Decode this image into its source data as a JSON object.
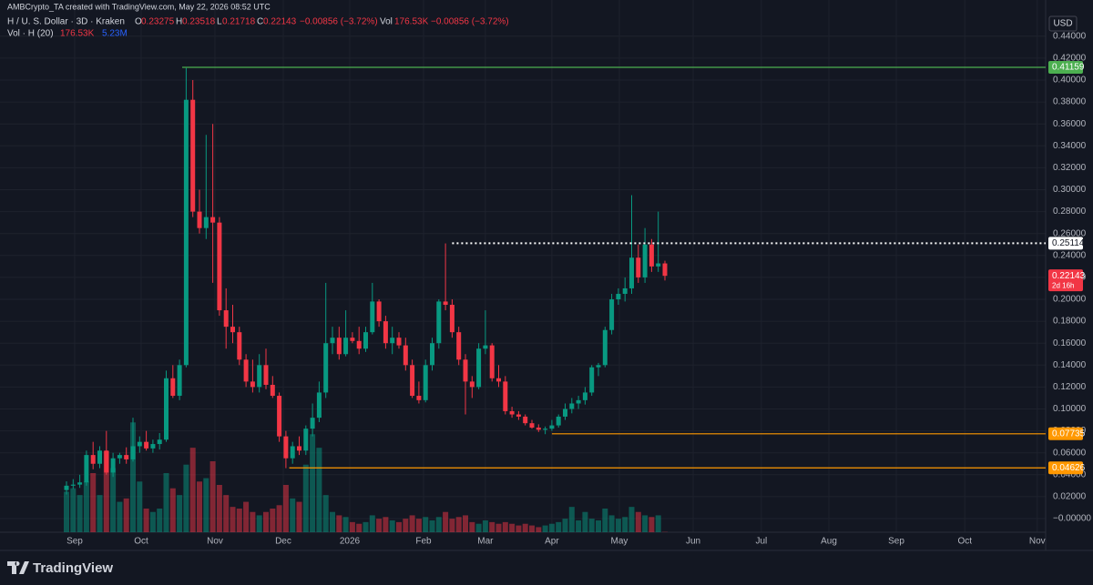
{
  "header": {
    "credit": "AMBCrypto_TA created with TradingView.com, May 22, 2026 08:52 UTC",
    "symbol": "H / U. S. Dollar · 3D · Kraken",
    "o": "O",
    "h": "H",
    "l": "L",
    "c": "C",
    "change": "−0.00856 (−3.72%)",
    "vol_label": "Vol",
    "vol_value": "176.53K",
    "vol_change": "−0.00856 (−3.72%)",
    "vol_study": "Vol · H (20)",
    "vol_study_value": "176.53K",
    "vol_ma_value": "5.23M",
    "currency": "USD",
    "countdown": "2d 16h",
    "brand": "TradingView"
  },
  "chart_data": {
    "type": "candlestick",
    "up_color": "#089981",
    "down_color": "#f23645",
    "grid": true,
    "ylim": [
      -0.01245,
      0.45643
    ],
    "vlim": [
      0,
      70
    ],
    "xlim": [
      -10,
      147.26
    ],
    "yticks": [
      {
        "value": 0.44,
        "label": "0.44000"
      },
      {
        "value": 0.42,
        "label": "0.42000"
      },
      {
        "value": 0.4,
        "label": "0.40000"
      },
      {
        "value": 0.38,
        "label": "0.38000"
      },
      {
        "value": 0.36,
        "label": "0.36000"
      },
      {
        "value": 0.34,
        "label": "0.34000"
      },
      {
        "value": 0.32,
        "label": "0.32000"
      },
      {
        "value": 0.3,
        "label": "0.30000"
      },
      {
        "value": 0.28,
        "label": "0.28000"
      },
      {
        "value": 0.26,
        "label": "0.26000"
      },
      {
        "value": 0.24,
        "label": "0.24000"
      },
      {
        "value": 0.22,
        "label": "0.22000"
      },
      {
        "value": 0.2,
        "label": "0.20000"
      },
      {
        "value": 0.18,
        "label": "0.18000"
      },
      {
        "value": 0.16,
        "label": "0.16000"
      },
      {
        "value": 0.14,
        "label": "0.14000"
      },
      {
        "value": 0.12,
        "label": "0.12000"
      },
      {
        "value": 0.1,
        "label": "0.10000"
      },
      {
        "value": 0.08,
        "label": "0.08000"
      },
      {
        "value": 0.06,
        "label": "0.06000"
      },
      {
        "value": 0.04,
        "label": "0.04000"
      },
      {
        "value": 0.02,
        "label": "0.02000"
      },
      {
        "value": 0,
        "label": "−0.00000"
      }
    ],
    "xticks": [
      {
        "value": 1.23,
        "label": "Sep"
      },
      {
        "value": 11.23,
        "label": "Oct"
      },
      {
        "value": 22.33,
        "label": "Nov"
      },
      {
        "value": 32.6,
        "label": "Dec"
      },
      {
        "value": 42.6,
        "label": "2026"
      },
      {
        "value": 53.7,
        "label": "Feb"
      },
      {
        "value": 63.0,
        "label": "Mar"
      },
      {
        "value": 73.0,
        "label": "Apr"
      },
      {
        "value": 83.15,
        "label": "May"
      },
      {
        "value": 94.25,
        "label": "Jun"
      },
      {
        "value": 104.5,
        "label": "Jul"
      },
      {
        "value": 114.66,
        "label": "Aug"
      },
      {
        "value": 124.8,
        "label": "Sep"
      },
      {
        "value": 135.1,
        "label": "Oct"
      },
      {
        "value": 146.0,
        "label": "Nov"
      }
    ],
    "levels": [
      {
        "value": 0.41159,
        "color": "#4caf50",
        "start": 17.4,
        "style": "solid"
      },
      {
        "value": 0.25114,
        "color": "#ffffff",
        "start": 58,
        "style": "dotted"
      },
      {
        "value": 0.07735,
        "color": "#ff9800",
        "start": 73,
        "style": "solid"
      },
      {
        "value": 0.04626,
        "color": "#ff9800",
        "start": 33.5,
        "style": "solid"
      }
    ],
    "candles": [
      {
        "o": 0.026,
        "h": 0.034,
        "l": 0.022,
        "c": 0.03,
        "v": 24
      },
      {
        "o": 0.03,
        "h": 0.036,
        "l": 0.027,
        "c": 0.031,
        "v": 26
      },
      {
        "o": 0.031,
        "h": 0.04,
        "l": 0.028,
        "c": 0.033,
        "v": 22
      },
      {
        "o": 0.033,
        "h": 0.062,
        "l": 0.03,
        "c": 0.058,
        "v": 30
      },
      {
        "o": 0.058,
        "h": 0.07,
        "l": 0.045,
        "c": 0.05,
        "v": 35
      },
      {
        "o": 0.05,
        "h": 0.066,
        "l": 0.046,
        "c": 0.062,
        "v": 22
      },
      {
        "o": 0.062,
        "h": 0.08,
        "l": 0.04,
        "c": 0.042,
        "v": 48
      },
      {
        "o": 0.042,
        "h": 0.06,
        "l": 0.038,
        "c": 0.055,
        "v": 38
      },
      {
        "o": 0.055,
        "h": 0.06,
        "l": 0.05,
        "c": 0.058,
        "v": 18
      },
      {
        "o": 0.058,
        "h": 0.065,
        "l": 0.05,
        "c": 0.054,
        "v": 20
      },
      {
        "o": 0.054,
        "h": 0.092,
        "l": 0.052,
        "c": 0.066,
        "v": 65
      },
      {
        "o": 0.066,
        "h": 0.075,
        "l": 0.06,
        "c": 0.07,
        "v": 30
      },
      {
        "o": 0.07,
        "h": 0.08,
        "l": 0.062,
        "c": 0.064,
        "v": 14
      },
      {
        "o": 0.064,
        "h": 0.072,
        "l": 0.06,
        "c": 0.068,
        "v": 12
      },
      {
        "o": 0.068,
        "h": 0.078,
        "l": 0.063,
        "c": 0.072,
        "v": 14
      },
      {
        "o": 0.072,
        "h": 0.135,
        "l": 0.07,
        "c": 0.128,
        "v": 35
      },
      {
        "o": 0.128,
        "h": 0.14,
        "l": 0.11,
        "c": 0.112,
        "v": 26
      },
      {
        "o": 0.112,
        "h": 0.145,
        "l": 0.108,
        "c": 0.14,
        "v": 22
      },
      {
        "o": 0.14,
        "h": 0.411,
        "l": 0.138,
        "c": 0.382,
        "v": 40
      },
      {
        "o": 0.382,
        "h": 0.4,
        "l": 0.275,
        "c": 0.28,
        "v": 50
      },
      {
        "o": 0.28,
        "h": 0.3,
        "l": 0.26,
        "c": 0.265,
        "v": 30
      },
      {
        "o": 0.265,
        "h": 0.35,
        "l": 0.255,
        "c": 0.275,
        "v": 32
      },
      {
        "o": 0.275,
        "h": 0.36,
        "l": 0.215,
        "c": 0.27,
        "v": 42
      },
      {
        "o": 0.27,
        "h": 0.275,
        "l": 0.185,
        "c": 0.19,
        "v": 28
      },
      {
        "o": 0.19,
        "h": 0.21,
        "l": 0.155,
        "c": 0.175,
        "v": 22
      },
      {
        "o": 0.175,
        "h": 0.195,
        "l": 0.16,
        "c": 0.17,
        "v": 15
      },
      {
        "o": 0.17,
        "h": 0.175,
        "l": 0.14,
        "c": 0.145,
        "v": 14
      },
      {
        "o": 0.145,
        "h": 0.15,
        "l": 0.12,
        "c": 0.125,
        "v": 18
      },
      {
        "o": 0.125,
        "h": 0.145,
        "l": 0.115,
        "c": 0.12,
        "v": 12
      },
      {
        "o": 0.12,
        "h": 0.15,
        "l": 0.115,
        "c": 0.14,
        "v": 10
      },
      {
        "o": 0.14,
        "h": 0.155,
        "l": 0.118,
        "c": 0.122,
        "v": 12
      },
      {
        "o": 0.122,
        "h": 0.13,
        "l": 0.11,
        "c": 0.112,
        "v": 14
      },
      {
        "o": 0.112,
        "h": 0.115,
        "l": 0.07,
        "c": 0.075,
        "v": 16
      },
      {
        "o": 0.075,
        "h": 0.08,
        "l": 0.046,
        "c": 0.055,
        "v": 28
      },
      {
        "o": 0.055,
        "h": 0.07,
        "l": 0.05,
        "c": 0.066,
        "v": 20
      },
      {
        "o": 0.066,
        "h": 0.075,
        "l": 0.058,
        "c": 0.062,
        "v": 18
      },
      {
        "o": 0.062,
        "h": 0.085,
        "l": 0.058,
        "c": 0.082,
        "v": 40
      },
      {
        "o": 0.082,
        "h": 0.105,
        "l": 0.075,
        "c": 0.092,
        "v": 58
      },
      {
        "o": 0.092,
        "h": 0.125,
        "l": 0.088,
        "c": 0.115,
        "v": 50
      },
      {
        "o": 0.115,
        "h": 0.215,
        "l": 0.11,
        "c": 0.16,
        "v": 22
      },
      {
        "o": 0.16,
        "h": 0.175,
        "l": 0.15,
        "c": 0.165,
        "v": 12
      },
      {
        "o": 0.165,
        "h": 0.175,
        "l": 0.145,
        "c": 0.15,
        "v": 10
      },
      {
        "o": 0.15,
        "h": 0.19,
        "l": 0.148,
        "c": 0.165,
        "v": 9
      },
      {
        "o": 0.165,
        "h": 0.17,
        "l": 0.16,
        "c": 0.162,
        "v": 6
      },
      {
        "o": 0.162,
        "h": 0.175,
        "l": 0.15,
        "c": 0.155,
        "v": 5
      },
      {
        "o": 0.155,
        "h": 0.175,
        "l": 0.152,
        "c": 0.17,
        "v": 6
      },
      {
        "o": 0.17,
        "h": 0.215,
        "l": 0.168,
        "c": 0.198,
        "v": 10
      },
      {
        "o": 0.198,
        "h": 0.2,
        "l": 0.175,
        "c": 0.18,
        "v": 8
      },
      {
        "o": 0.18,
        "h": 0.185,
        "l": 0.155,
        "c": 0.16,
        "v": 9
      },
      {
        "o": 0.16,
        "h": 0.175,
        "l": 0.15,
        "c": 0.165,
        "v": 7
      },
      {
        "o": 0.165,
        "h": 0.17,
        "l": 0.155,
        "c": 0.158,
        "v": 6
      },
      {
        "o": 0.158,
        "h": 0.165,
        "l": 0.135,
        "c": 0.14,
        "v": 8
      },
      {
        "o": 0.14,
        "h": 0.145,
        "l": 0.11,
        "c": 0.112,
        "v": 10
      },
      {
        "o": 0.112,
        "h": 0.125,
        "l": 0.105,
        "c": 0.108,
        "v": 8
      },
      {
        "o": 0.108,
        "h": 0.145,
        "l": 0.106,
        "c": 0.14,
        "v": 9
      },
      {
        "o": 0.14,
        "h": 0.165,
        "l": 0.135,
        "c": 0.16,
        "v": 7
      },
      {
        "o": 0.16,
        "h": 0.2,
        "l": 0.155,
        "c": 0.198,
        "v": 9
      },
      {
        "o": 0.198,
        "h": 0.251,
        "l": 0.19,
        "c": 0.195,
        "v": 12
      },
      {
        "o": 0.195,
        "h": 0.2,
        "l": 0.165,
        "c": 0.17,
        "v": 8
      },
      {
        "o": 0.17,
        "h": 0.175,
        "l": 0.14,
        "c": 0.145,
        "v": 9
      },
      {
        "o": 0.145,
        "h": 0.15,
        "l": 0.095,
        "c": 0.125,
        "v": 10
      },
      {
        "o": 0.125,
        "h": 0.13,
        "l": 0.11,
        "c": 0.12,
        "v": 6
      },
      {
        "o": 0.12,
        "h": 0.16,
        "l": 0.118,
        "c": 0.155,
        "v": 5
      },
      {
        "o": 0.155,
        "h": 0.19,
        "l": 0.15,
        "c": 0.158,
        "v": 7
      },
      {
        "o": 0.158,
        "h": 0.16,
        "l": 0.125,
        "c": 0.128,
        "v": 6
      },
      {
        "o": 0.128,
        "h": 0.14,
        "l": 0.12,
        "c": 0.125,
        "v": 5
      },
      {
        "o": 0.125,
        "h": 0.13,
        "l": 0.095,
        "c": 0.098,
        "v": 6
      },
      {
        "o": 0.098,
        "h": 0.102,
        "l": 0.092,
        "c": 0.095,
        "v": 5
      },
      {
        "o": 0.095,
        "h": 0.098,
        "l": 0.09,
        "c": 0.093,
        "v": 4
      },
      {
        "o": 0.093,
        "h": 0.095,
        "l": 0.085,
        "c": 0.087,
        "v": 5
      },
      {
        "o": 0.087,
        "h": 0.09,
        "l": 0.082,
        "c": 0.083,
        "v": 4
      },
      {
        "o": 0.083,
        "h": 0.086,
        "l": 0.079,
        "c": 0.081,
        "v": 3
      },
      {
        "o": 0.081,
        "h": 0.084,
        "l": 0.077,
        "c": 0.082,
        "v": 4
      },
      {
        "o": 0.082,
        "h": 0.09,
        "l": 0.08,
        "c": 0.085,
        "v": 5
      },
      {
        "o": 0.085,
        "h": 0.095,
        "l": 0.083,
        "c": 0.093,
        "v": 6
      },
      {
        "o": 0.093,
        "h": 0.105,
        "l": 0.09,
        "c": 0.1,
        "v": 8
      },
      {
        "o": 0.1,
        "h": 0.11,
        "l": 0.096,
        "c": 0.105,
        "v": 15
      },
      {
        "o": 0.105,
        "h": 0.112,
        "l": 0.1,
        "c": 0.108,
        "v": 7
      },
      {
        "o": 0.108,
        "h": 0.12,
        "l": 0.104,
        "c": 0.115,
        "v": 12
      },
      {
        "o": 0.115,
        "h": 0.14,
        "l": 0.112,
        "c": 0.138,
        "v": 8
      },
      {
        "o": 0.138,
        "h": 0.142,
        "l": 0.13,
        "c": 0.14,
        "v": 7
      },
      {
        "o": 0.14,
        "h": 0.175,
        "l": 0.138,
        "c": 0.172,
        "v": 14
      },
      {
        "o": 0.172,
        "h": 0.205,
        "l": 0.168,
        "c": 0.2,
        "v": 10
      },
      {
        "o": 0.2,
        "h": 0.21,
        "l": 0.195,
        "c": 0.205,
        "v": 8
      },
      {
        "o": 0.205,
        "h": 0.22,
        "l": 0.198,
        "c": 0.21,
        "v": 9
      },
      {
        "o": 0.21,
        "h": 0.295,
        "l": 0.205,
        "c": 0.238,
        "v": 15
      },
      {
        "o": 0.238,
        "h": 0.25,
        "l": 0.215,
        "c": 0.22,
        "v": 12
      },
      {
        "o": 0.22,
        "h": 0.265,
        "l": 0.215,
        "c": 0.25,
        "v": 10
      },
      {
        "o": 0.25,
        "h": 0.255,
        "l": 0.225,
        "c": 0.23,
        "v": 9
      },
      {
        "o": 0.23,
        "h": 0.28,
        "l": 0.225,
        "c": 0.23275,
        "v": 10
      },
      {
        "o": 0.23275,
        "h": 0.23518,
        "l": 0.21718,
        "c": 0.22143,
        "v": 0.17653
      }
    ]
  }
}
